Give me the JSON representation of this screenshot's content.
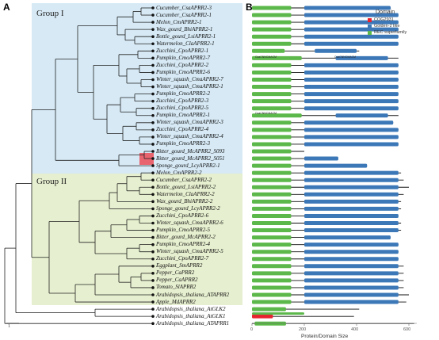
{
  "panels": {
    "a": "A",
    "b": "B"
  },
  "groups": {
    "group1": "Group I",
    "group2": "Group II"
  },
  "scale_label": "1",
  "colors": {
    "group1_bg": "#d6e9f5",
    "group2_bg": "#e6efcf",
    "highlight": "#e8646e",
    "domain_cog": "#e8232f",
    "domain_golden": "#3c78b8",
    "domain_rec": "#5cb84a",
    "backbone": "#000000"
  },
  "legend": {
    "title": "Domain",
    "items": [
      {
        "label": "COG2931",
        "color": "#e8232f"
      },
      {
        "label": "Golden-2 like",
        "color": "#3c78b8"
      },
      {
        "label": "REC superfamily",
        "color": "#5cb84a"
      }
    ]
  },
  "axis": {
    "title": "Protein/Domain Size",
    "ticks": [
      "0",
      "200",
      "400",
      "600"
    ]
  },
  "bar_texts": [
    "CsaCNNCMACM",
    "CsaCNNCMACM",
    "CsaCNNCMACM"
  ],
  "leaves": [
    "Cucumber_CsaAPRR2-3",
    "Cucumber_CsaAPRR2-1",
    "Melon_CmAPRR2-1",
    "Wax_gourd_BhiAPRR2-1",
    "Bottle_gourd_LsiAPRR2-1",
    "Watermelon_ClaAPRR2-1",
    "Zucchini_CpoAPRR2-1",
    "Pumpkin_CmoAPRR2-7",
    "Zucchini_CpoAPRR2-2",
    "Pumpkin_CmoAPRR2-6",
    "Winter_squash_CmaAPRR2-7",
    "Winter_squash_CmaAPRR2-1",
    "Pumpkin_CmoAPRR2-2",
    "Zucchini_CpoAPRR2-3",
    "Zucchini_CpoAPRR2-5",
    "Pumpkin_CmoAPRR2-1",
    "Winter_squash_CmaAPRR2-3",
    "Zucchini_CpoAPRR2-4",
    "Winter_squash_CmaAPRR2-4",
    "Pumpkin_CmoAPRR2-3",
    "Bitter_gourd_McAPRR2_S093",
    "Bitter_gourd_McAPRR2_S051",
    "Sponge_gourd_LcyAPRR2-1",
    "Melon_CmAPRR2-2",
    "Cucumber_CsaAPRR2-2",
    "Bottle_gourd_LsiAPRR2-2",
    "Watermelon_ClaAPRR2-2",
    "Wax_gourd_BhiAPRR2-2",
    "Sponge_gourd_LcyAPRR2-2",
    "Zucchini_CpoAPRR2-6",
    "Winter_squash_CmaAPRR2-6",
    "Pumpkin_CmoAPRR2-5",
    "Bitter_gourd_McAPRR2-2",
    "Pumpkin_CmoAPRR2-4",
    "Winter_squash_CmaAPRR2-5",
    "Zucchini_CpoAPRR2-7",
    "Eggplant_SmAPRR2",
    "Pepper_CaPRR2",
    "Pepper_CaAPRR2",
    "Tomato_SlAPRR2",
    "Arabidopsis_thaliana_ATAPRR2",
    "Apple_MdAPRR2",
    "Arabidopsis_thaliana_AtGLK2",
    "Arabidopsis_thaliana_AtGLK1",
    "Arabidopsis_thaliana_ATAPRR1"
  ]
}
